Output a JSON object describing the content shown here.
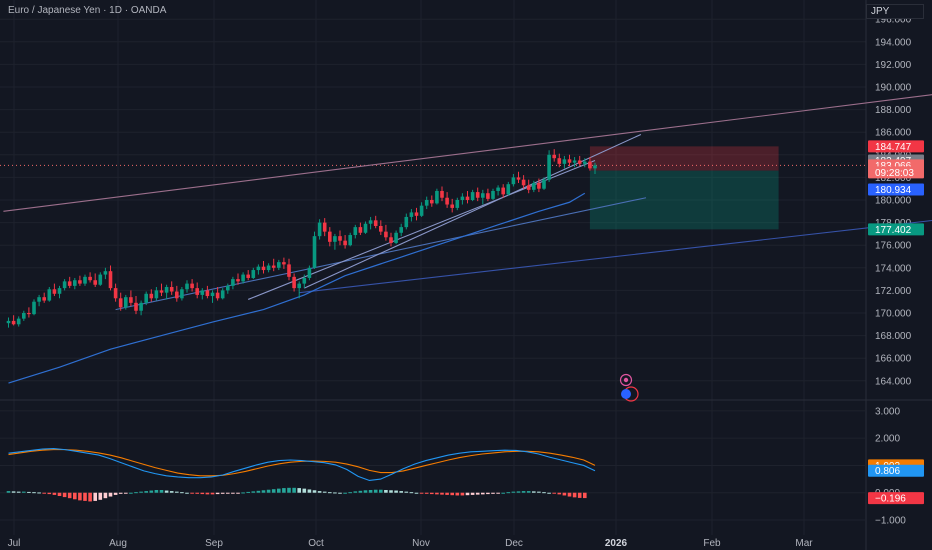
{
  "header": {
    "title": "Euro / Japanese Yen · 1D · OANDA",
    "currency": "JPY"
  },
  "chart_data": [
    {
      "type": "candlestick",
      "ylim": [
        162.3,
        197.7
      ],
      "y_ticks": [
        "196.000",
        "194.000",
        "192.000",
        "190.000",
        "188.000",
        "186.000",
        "184.000",
        "182.000",
        "180.000",
        "178.000",
        "176.000",
        "174.000",
        "172.000",
        "170.000",
        "168.000",
        "166.000",
        "164.000"
      ],
      "x_ticks": [
        "Jul",
        "Aug",
        "Sep",
        "Oct",
        "Nov",
        "Dec",
        "2026",
        "Feb",
        "Mar"
      ],
      "candles": [
        {
          "o": 169.1,
          "h": 169.6,
          "l": 168.7,
          "c": 169.3
        },
        {
          "o": 169.3,
          "h": 169.8,
          "l": 168.9,
          "c": 169.0
        },
        {
          "o": 169.0,
          "h": 169.7,
          "l": 168.8,
          "c": 169.5
        },
        {
          "o": 169.5,
          "h": 170.2,
          "l": 169.3,
          "c": 170.0
        },
        {
          "o": 170.0,
          "h": 170.5,
          "l": 169.6,
          "c": 169.9
        },
        {
          "o": 169.9,
          "h": 171.2,
          "l": 169.8,
          "c": 171.0
        },
        {
          "o": 171.0,
          "h": 171.6,
          "l": 170.6,
          "c": 171.4
        },
        {
          "o": 171.4,
          "h": 171.8,
          "l": 170.9,
          "c": 171.1
        },
        {
          "o": 171.1,
          "h": 172.3,
          "l": 171.0,
          "c": 172.1
        },
        {
          "o": 172.1,
          "h": 172.6,
          "l": 171.5,
          "c": 171.7
        },
        {
          "o": 171.7,
          "h": 172.4,
          "l": 171.3,
          "c": 172.2
        },
        {
          "o": 172.2,
          "h": 173.0,
          "l": 172.0,
          "c": 172.8
        },
        {
          "o": 172.8,
          "h": 173.2,
          "l": 172.2,
          "c": 172.4
        },
        {
          "o": 172.4,
          "h": 173.1,
          "l": 172.1,
          "c": 172.9
        },
        {
          "o": 172.9,
          "h": 173.3,
          "l": 172.4,
          "c": 172.6
        },
        {
          "o": 172.6,
          "h": 173.4,
          "l": 172.4,
          "c": 173.2
        },
        {
          "o": 173.2,
          "h": 173.6,
          "l": 172.7,
          "c": 172.9
        },
        {
          "o": 172.9,
          "h": 173.5,
          "l": 172.3,
          "c": 172.5
        },
        {
          "o": 172.5,
          "h": 173.6,
          "l": 172.4,
          "c": 173.4
        },
        {
          "o": 173.4,
          "h": 174.0,
          "l": 173.0,
          "c": 173.7
        },
        {
          "o": 173.7,
          "h": 174.2,
          "l": 172.0,
          "c": 172.2
        },
        {
          "o": 172.2,
          "h": 172.6,
          "l": 171.0,
          "c": 171.3
        },
        {
          "o": 171.3,
          "h": 171.8,
          "l": 170.2,
          "c": 170.5
        },
        {
          "o": 170.5,
          "h": 171.6,
          "l": 170.3,
          "c": 171.4
        },
        {
          "o": 171.4,
          "h": 172.0,
          "l": 170.6,
          "c": 170.9
        },
        {
          "o": 170.9,
          "h": 171.5,
          "l": 169.9,
          "c": 170.2
        },
        {
          "o": 170.2,
          "h": 171.1,
          "l": 169.8,
          "c": 170.9
        },
        {
          "o": 170.9,
          "h": 171.9,
          "l": 170.7,
          "c": 171.7
        },
        {
          "o": 171.7,
          "h": 172.1,
          "l": 171.0,
          "c": 171.3
        },
        {
          "o": 171.3,
          "h": 172.3,
          "l": 171.1,
          "c": 172.0
        },
        {
          "o": 172.0,
          "h": 172.6,
          "l": 171.5,
          "c": 171.8
        },
        {
          "o": 171.8,
          "h": 172.5,
          "l": 171.2,
          "c": 172.3
        },
        {
          "o": 172.3,
          "h": 172.8,
          "l": 171.6,
          "c": 171.9
        },
        {
          "o": 171.9,
          "h": 172.4,
          "l": 171.0,
          "c": 171.3
        },
        {
          "o": 171.3,
          "h": 172.3,
          "l": 171.1,
          "c": 172.1
        },
        {
          "o": 172.1,
          "h": 172.9,
          "l": 171.8,
          "c": 172.6
        },
        {
          "o": 172.6,
          "h": 173.0,
          "l": 171.9,
          "c": 172.2
        },
        {
          "o": 172.2,
          "h": 172.7,
          "l": 171.3,
          "c": 171.6
        },
        {
          "o": 171.6,
          "h": 172.2,
          "l": 171.2,
          "c": 172.0
        },
        {
          "o": 172.0,
          "h": 172.4,
          "l": 171.3,
          "c": 171.5
        },
        {
          "o": 171.5,
          "h": 172.0,
          "l": 170.9,
          "c": 171.8
        },
        {
          "o": 171.8,
          "h": 172.3,
          "l": 171.1,
          "c": 171.3
        },
        {
          "o": 171.3,
          "h": 172.2,
          "l": 171.2,
          "c": 172.0
        },
        {
          "o": 172.0,
          "h": 172.6,
          "l": 171.7,
          "c": 172.4
        },
        {
          "o": 172.4,
          "h": 173.2,
          "l": 172.1,
          "c": 173.0
        },
        {
          "o": 173.0,
          "h": 173.5,
          "l": 172.5,
          "c": 172.8
        },
        {
          "o": 172.8,
          "h": 173.6,
          "l": 172.6,
          "c": 173.4
        },
        {
          "o": 173.4,
          "h": 173.8,
          "l": 172.9,
          "c": 173.1
        },
        {
          "o": 173.1,
          "h": 174.0,
          "l": 173.0,
          "c": 173.8
        },
        {
          "o": 173.8,
          "h": 174.3,
          "l": 173.4,
          "c": 174.1
        },
        {
          "o": 174.1,
          "h": 174.6,
          "l": 173.5,
          "c": 173.8
        },
        {
          "o": 173.8,
          "h": 174.4,
          "l": 173.6,
          "c": 174.2
        },
        {
          "o": 174.2,
          "h": 174.8,
          "l": 173.7,
          "c": 174.0
        },
        {
          "o": 174.0,
          "h": 174.7,
          "l": 173.8,
          "c": 174.5
        },
        {
          "o": 174.5,
          "h": 174.9,
          "l": 173.9,
          "c": 174.3
        },
        {
          "o": 174.3,
          "h": 174.8,
          "l": 172.9,
          "c": 173.2
        },
        {
          "o": 173.2,
          "h": 173.5,
          "l": 171.9,
          "c": 172.2
        },
        {
          "o": 172.2,
          "h": 172.8,
          "l": 171.3,
          "c": 172.6
        },
        {
          "o": 172.6,
          "h": 173.4,
          "l": 172.2,
          "c": 173.1
        },
        {
          "o": 173.1,
          "h": 174.2,
          "l": 172.9,
          "c": 174.0
        },
        {
          "o": 174.0,
          "h": 177.2,
          "l": 173.9,
          "c": 176.8
        },
        {
          "o": 176.8,
          "h": 178.3,
          "l": 176.5,
          "c": 178.0
        },
        {
          "o": 178.0,
          "h": 178.4,
          "l": 176.8,
          "c": 177.2
        },
        {
          "o": 177.2,
          "h": 177.6,
          "l": 175.9,
          "c": 176.3
        },
        {
          "o": 176.3,
          "h": 177.0,
          "l": 175.6,
          "c": 176.8
        },
        {
          "o": 176.8,
          "h": 177.3,
          "l": 176.0,
          "c": 176.4
        },
        {
          "o": 176.4,
          "h": 176.9,
          "l": 175.7,
          "c": 176.0
        },
        {
          "o": 176.0,
          "h": 177.1,
          "l": 175.9,
          "c": 176.9
        },
        {
          "o": 176.9,
          "h": 177.8,
          "l": 176.6,
          "c": 177.6
        },
        {
          "o": 177.6,
          "h": 178.0,
          "l": 176.9,
          "c": 177.1
        },
        {
          "o": 177.1,
          "h": 178.1,
          "l": 177.0,
          "c": 177.9
        },
        {
          "o": 177.9,
          "h": 178.5,
          "l": 177.4,
          "c": 178.2
        },
        {
          "o": 178.2,
          "h": 178.6,
          "l": 177.5,
          "c": 177.7
        },
        {
          "o": 177.7,
          "h": 178.2,
          "l": 176.9,
          "c": 177.2
        },
        {
          "o": 177.2,
          "h": 177.8,
          "l": 176.4,
          "c": 176.7
        },
        {
          "o": 176.7,
          "h": 177.1,
          "l": 175.9,
          "c": 176.2
        },
        {
          "o": 176.2,
          "h": 177.3,
          "l": 176.1,
          "c": 177.1
        },
        {
          "o": 177.1,
          "h": 177.9,
          "l": 176.8,
          "c": 177.6
        },
        {
          "o": 177.6,
          "h": 178.8,
          "l": 177.4,
          "c": 178.5
        },
        {
          "o": 178.5,
          "h": 179.2,
          "l": 178.1,
          "c": 178.9
        },
        {
          "o": 178.9,
          "h": 179.3,
          "l": 178.2,
          "c": 178.6
        },
        {
          "o": 178.6,
          "h": 179.8,
          "l": 178.5,
          "c": 179.5
        },
        {
          "o": 179.5,
          "h": 180.3,
          "l": 179.2,
          "c": 180.0
        },
        {
          "o": 180.0,
          "h": 180.4,
          "l": 179.4,
          "c": 179.7
        },
        {
          "o": 179.7,
          "h": 181.0,
          "l": 179.6,
          "c": 180.8
        },
        {
          "o": 180.8,
          "h": 181.2,
          "l": 179.9,
          "c": 180.2
        },
        {
          "o": 180.2,
          "h": 180.7,
          "l": 179.3,
          "c": 179.6
        },
        {
          "o": 179.6,
          "h": 180.1,
          "l": 178.9,
          "c": 179.3
        },
        {
          "o": 179.3,
          "h": 180.2,
          "l": 179.1,
          "c": 180.0
        },
        {
          "o": 180.0,
          "h": 180.6,
          "l": 179.6,
          "c": 180.3
        },
        {
          "o": 180.3,
          "h": 180.8,
          "l": 179.7,
          "c": 180.0
        },
        {
          "o": 180.0,
          "h": 180.9,
          "l": 179.9,
          "c": 180.7
        },
        {
          "o": 180.7,
          "h": 181.1,
          "l": 179.9,
          "c": 180.2
        },
        {
          "o": 180.2,
          "h": 180.9,
          "l": 179.6,
          "c": 180.6
        },
        {
          "o": 180.6,
          "h": 181.0,
          "l": 179.9,
          "c": 180.1
        },
        {
          "o": 180.1,
          "h": 181.0,
          "l": 180.0,
          "c": 180.8
        },
        {
          "o": 180.8,
          "h": 181.3,
          "l": 180.4,
          "c": 181.1
        },
        {
          "o": 181.1,
          "h": 181.4,
          "l": 180.2,
          "c": 180.5
        },
        {
          "o": 180.5,
          "h": 181.6,
          "l": 180.4,
          "c": 181.4
        },
        {
          "o": 181.4,
          "h": 182.3,
          "l": 181.2,
          "c": 182.0
        },
        {
          "o": 182.0,
          "h": 182.5,
          "l": 181.5,
          "c": 181.8
        },
        {
          "o": 181.8,
          "h": 182.2,
          "l": 181.0,
          "c": 181.3
        },
        {
          "o": 181.3,
          "h": 181.8,
          "l": 180.6,
          "c": 180.9
        },
        {
          "o": 180.9,
          "h": 181.7,
          "l": 180.7,
          "c": 181.5
        },
        {
          "o": 181.5,
          "h": 181.9,
          "l": 180.7,
          "c": 181.0
        },
        {
          "o": 181.0,
          "h": 182.0,
          "l": 180.9,
          "c": 181.8
        },
        {
          "o": 181.8,
          "h": 184.4,
          "l": 181.6,
          "c": 184.0
        },
        {
          "o": 184.0,
          "h": 184.5,
          "l": 183.4,
          "c": 183.7
        },
        {
          "o": 183.7,
          "h": 184.1,
          "l": 182.9,
          "c": 183.2
        },
        {
          "o": 183.2,
          "h": 183.9,
          "l": 182.8,
          "c": 183.6
        },
        {
          "o": 183.6,
          "h": 184.0,
          "l": 183.0,
          "c": 183.3
        },
        {
          "o": 183.3,
          "h": 183.8,
          "l": 182.9,
          "c": 183.5
        },
        {
          "o": 183.5,
          "h": 183.9,
          "l": 183.0,
          "c": 183.2
        },
        {
          "o": 183.2,
          "h": 183.7,
          "l": 182.9,
          "c": 183.4
        },
        {
          "o": 183.4,
          "h": 183.8,
          "l": 182.6,
          "c": 182.8
        },
        {
          "o": 182.8,
          "h": 183.3,
          "l": 182.3,
          "c": 183.066
        }
      ],
      "moving_average": [
        [
          0,
          163.8
        ],
        [
          10,
          165.2
        ],
        [
          20,
          166.8
        ],
        [
          30,
          168.0
        ],
        [
          40,
          169.2
        ],
        [
          50,
          170.3
        ],
        [
          58,
          171.6
        ],
        [
          66,
          173.3
        ],
        [
          76,
          174.8
        ],
        [
          86,
          176.3
        ],
        [
          96,
          177.8
        ],
        [
          104,
          179.0
        ],
        [
          110,
          179.8
        ],
        [
          113,
          180.6
        ]
      ],
      "trendlines": [
        {
          "from": [
            -1,
            179.0
          ],
          "to": [
            193,
            190.0
          ],
          "color": "#9c6f8c"
        },
        {
          "from": [
            21,
            170.3
          ],
          "to": [
            125,
            180.2
          ],
          "color": "#4a6fb5"
        },
        {
          "from": [
            47,
            171.2
          ],
          "to": [
            115,
            183.5
          ],
          "color": "#8a97c9"
        },
        {
          "from": [
            57,
            171.8
          ],
          "to": [
            193,
            178.8
          ],
          "color": "#3652a8"
        },
        {
          "from": [
            58,
            172.2
          ],
          "to": [
            124,
            185.8
          ],
          "color": "#8a97c9"
        }
      ],
      "position_tool": {
        "start": 114,
        "end": 151,
        "entry": 182.6,
        "stop": 184.747,
        "target": 177.402
      },
      "price_labels": [
        {
          "text": "184.747",
          "value": 184.747,
          "color": "#f23645"
        },
        {
          "text": "183.497",
          "value": 183.497,
          "color": "#787b86"
        },
        {
          "text": "183.066",
          "value": 183.066,
          "color": "#f26a6a"
        },
        {
          "text": "09:28:03",
          "value": 182.45,
          "color": "#f26a6a"
        },
        {
          "text": "180.934",
          "value": 180.934,
          "color": "#2962ff"
        },
        {
          "text": "177.402",
          "value": 177.402,
          "color": "#089981"
        }
      ]
    },
    {
      "type": "macd",
      "ylim": [
        -1.55,
        3.4
      ],
      "y_ticks": [
        "3.000",
        "2.000",
        "1.000",
        "0.000",
        "−1.000"
      ],
      "macd": [
        1.45,
        1.5,
        1.55,
        1.6,
        1.62,
        1.58,
        1.52,
        1.45,
        1.38,
        1.25,
        1.1,
        0.95,
        0.8,
        0.7,
        0.62,
        0.58,
        0.55,
        0.55,
        0.58,
        0.65,
        0.78,
        0.9,
        1.02,
        1.12,
        1.18,
        1.2,
        1.18,
        1.14,
        1.1,
        1.02,
        0.85,
        0.6,
        0.45,
        0.5,
        0.68,
        0.88,
        1.05,
        1.18,
        1.28,
        1.38,
        1.45,
        1.5,
        1.52,
        1.54,
        1.56,
        1.55,
        1.5,
        1.42,
        1.3,
        1.2,
        1.1,
        1.0,
        0.806
      ],
      "signal": [
        1.4,
        1.46,
        1.52,
        1.56,
        1.58,
        1.58,
        1.56,
        1.52,
        1.46,
        1.38,
        1.28,
        1.16,
        1.04,
        0.92,
        0.82,
        0.72,
        0.66,
        0.62,
        0.62,
        0.64,
        0.7,
        0.78,
        0.88,
        0.98,
        1.06,
        1.12,
        1.15,
        1.16,
        1.15,
        1.12,
        1.05,
        0.95,
        0.82,
        0.74,
        0.74,
        0.8,
        0.9,
        1.0,
        1.1,
        1.2,
        1.29,
        1.36,
        1.42,
        1.46,
        1.5,
        1.52,
        1.52,
        1.5,
        1.45,
        1.38,
        1.3,
        1.2,
        1.002
      ],
      "histogram": [
        0.06,
        0.05,
        0.04,
        0.04,
        0.03,
        0.02,
        0.01,
        -0.02,
        -0.05,
        -0.08,
        -0.12,
        -0.16,
        -0.2,
        -0.24,
        -0.28,
        -0.3,
        -0.32,
        -0.3,
        -0.26,
        -0.2,
        -0.14,
        -0.08,
        -0.04,
        -0.02,
        0.0,
        0.02,
        0.04,
        0.06,
        0.08,
        0.1,
        0.1,
        0.08,
        0.06,
        0.04,
        0.02,
        0.0,
        -0.02,
        -0.04,
        -0.05,
        -0.06,
        -0.06,
        -0.05,
        -0.04,
        -0.03,
        -0.02,
        -0.01,
        0.01,
        0.03,
        0.05,
        0.07,
        0.09,
        0.11,
        0.13,
        0.15,
        0.17,
        0.18,
        0.18,
        0.17,
        0.15,
        0.12,
        0.09,
        0.06,
        0.04,
        0.02,
        0.01,
        0.0,
        0.0,
        0.02,
        0.05,
        0.07,
        0.09,
        0.1,
        0.11,
        0.11,
        0.1,
        0.09,
        0.08,
        0.06,
        0.04,
        0.02,
        0.0,
        -0.02,
        -0.04,
        -0.05,
        -0.06,
        -0.07,
        -0.08,
        -0.09,
        -0.1,
        -0.1,
        -0.09,
        -0.08,
        -0.07,
        -0.06,
        -0.05,
        -0.04,
        -0.02,
        0.0,
        0.02,
        0.04,
        0.05,
        0.06,
        0.06,
        0.05,
        0.04,
        0.02,
        0.0,
        -0.03,
        -0.06,
        -0.1,
        -0.14,
        -0.17,
        -0.19,
        -0.196
      ],
      "labels": [
        {
          "text": "1.002",
          "value": 1.002,
          "color": "#f57c00"
        },
        {
          "text": "0.806",
          "value": 0.806,
          "color": "#2196f3"
        },
        {
          "text": "−0.196",
          "value": -0.196,
          "color": "#f23645"
        }
      ]
    }
  ]
}
